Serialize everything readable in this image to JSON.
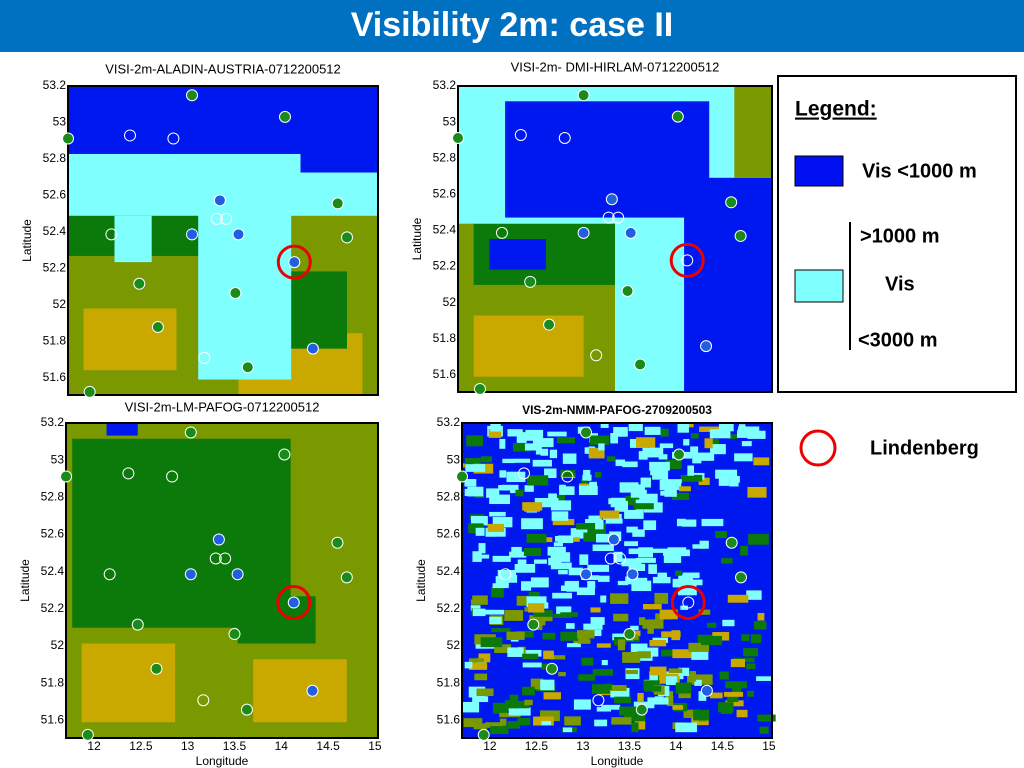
{
  "header": {
    "title": "Visibility 2m: case II"
  },
  "panels": [
    {
      "title": "VISI-2m-ALADIN-AUSTRIA-0712200512",
      "ylabel": "Latitude",
      "lat_ticks": [
        "53.2",
        "53",
        "52.8",
        "52.6",
        "52.4",
        "52.2",
        "52",
        "51.8",
        "51.6"
      ]
    },
    {
      "title": "VISI-2m- DMI-HIRLAM-0712200512",
      "ylabel": "Latitude",
      "lat_ticks": [
        "53.2",
        "53",
        "52.8",
        "52.6",
        "52.4",
        "52.2",
        "52",
        "51.8",
        "51.6"
      ]
    },
    {
      "title": "VISI-2m-LM-PAFOG-0712200512",
      "ylabel": "Latitude",
      "xlabel": "Longitude",
      "lat_ticks": [
        "53.2",
        "53",
        "52.8",
        "52.6",
        "52.4",
        "52.2",
        "52",
        "51.8",
        "51.6"
      ],
      "lon_ticks": [
        "12",
        "12.5",
        "13",
        "13.5",
        "14",
        "14.5",
        "15"
      ]
    },
    {
      "title": "VIS-2m-NMM-PAFOG-2709200503",
      "ylabel": "Latitude",
      "xlabel": "Longitude",
      "lat_ticks": [
        "53.2",
        "53",
        "52.8",
        "52.6",
        "52.4",
        "52.2",
        "52",
        "51.8",
        "51.6"
      ],
      "lon_ticks": [
        "12",
        "12.5",
        "13",
        "13.5",
        "14",
        "14.5",
        "15"
      ]
    }
  ],
  "legend": {
    "title": "Legend:",
    "blue_label": "Vis <1000 m",
    "cyan_top": ">1000 m",
    "cyan_mid": "Vis",
    "cyan_bottom": "<3000 m",
    "station_label": "Lindenberg"
  }
}
